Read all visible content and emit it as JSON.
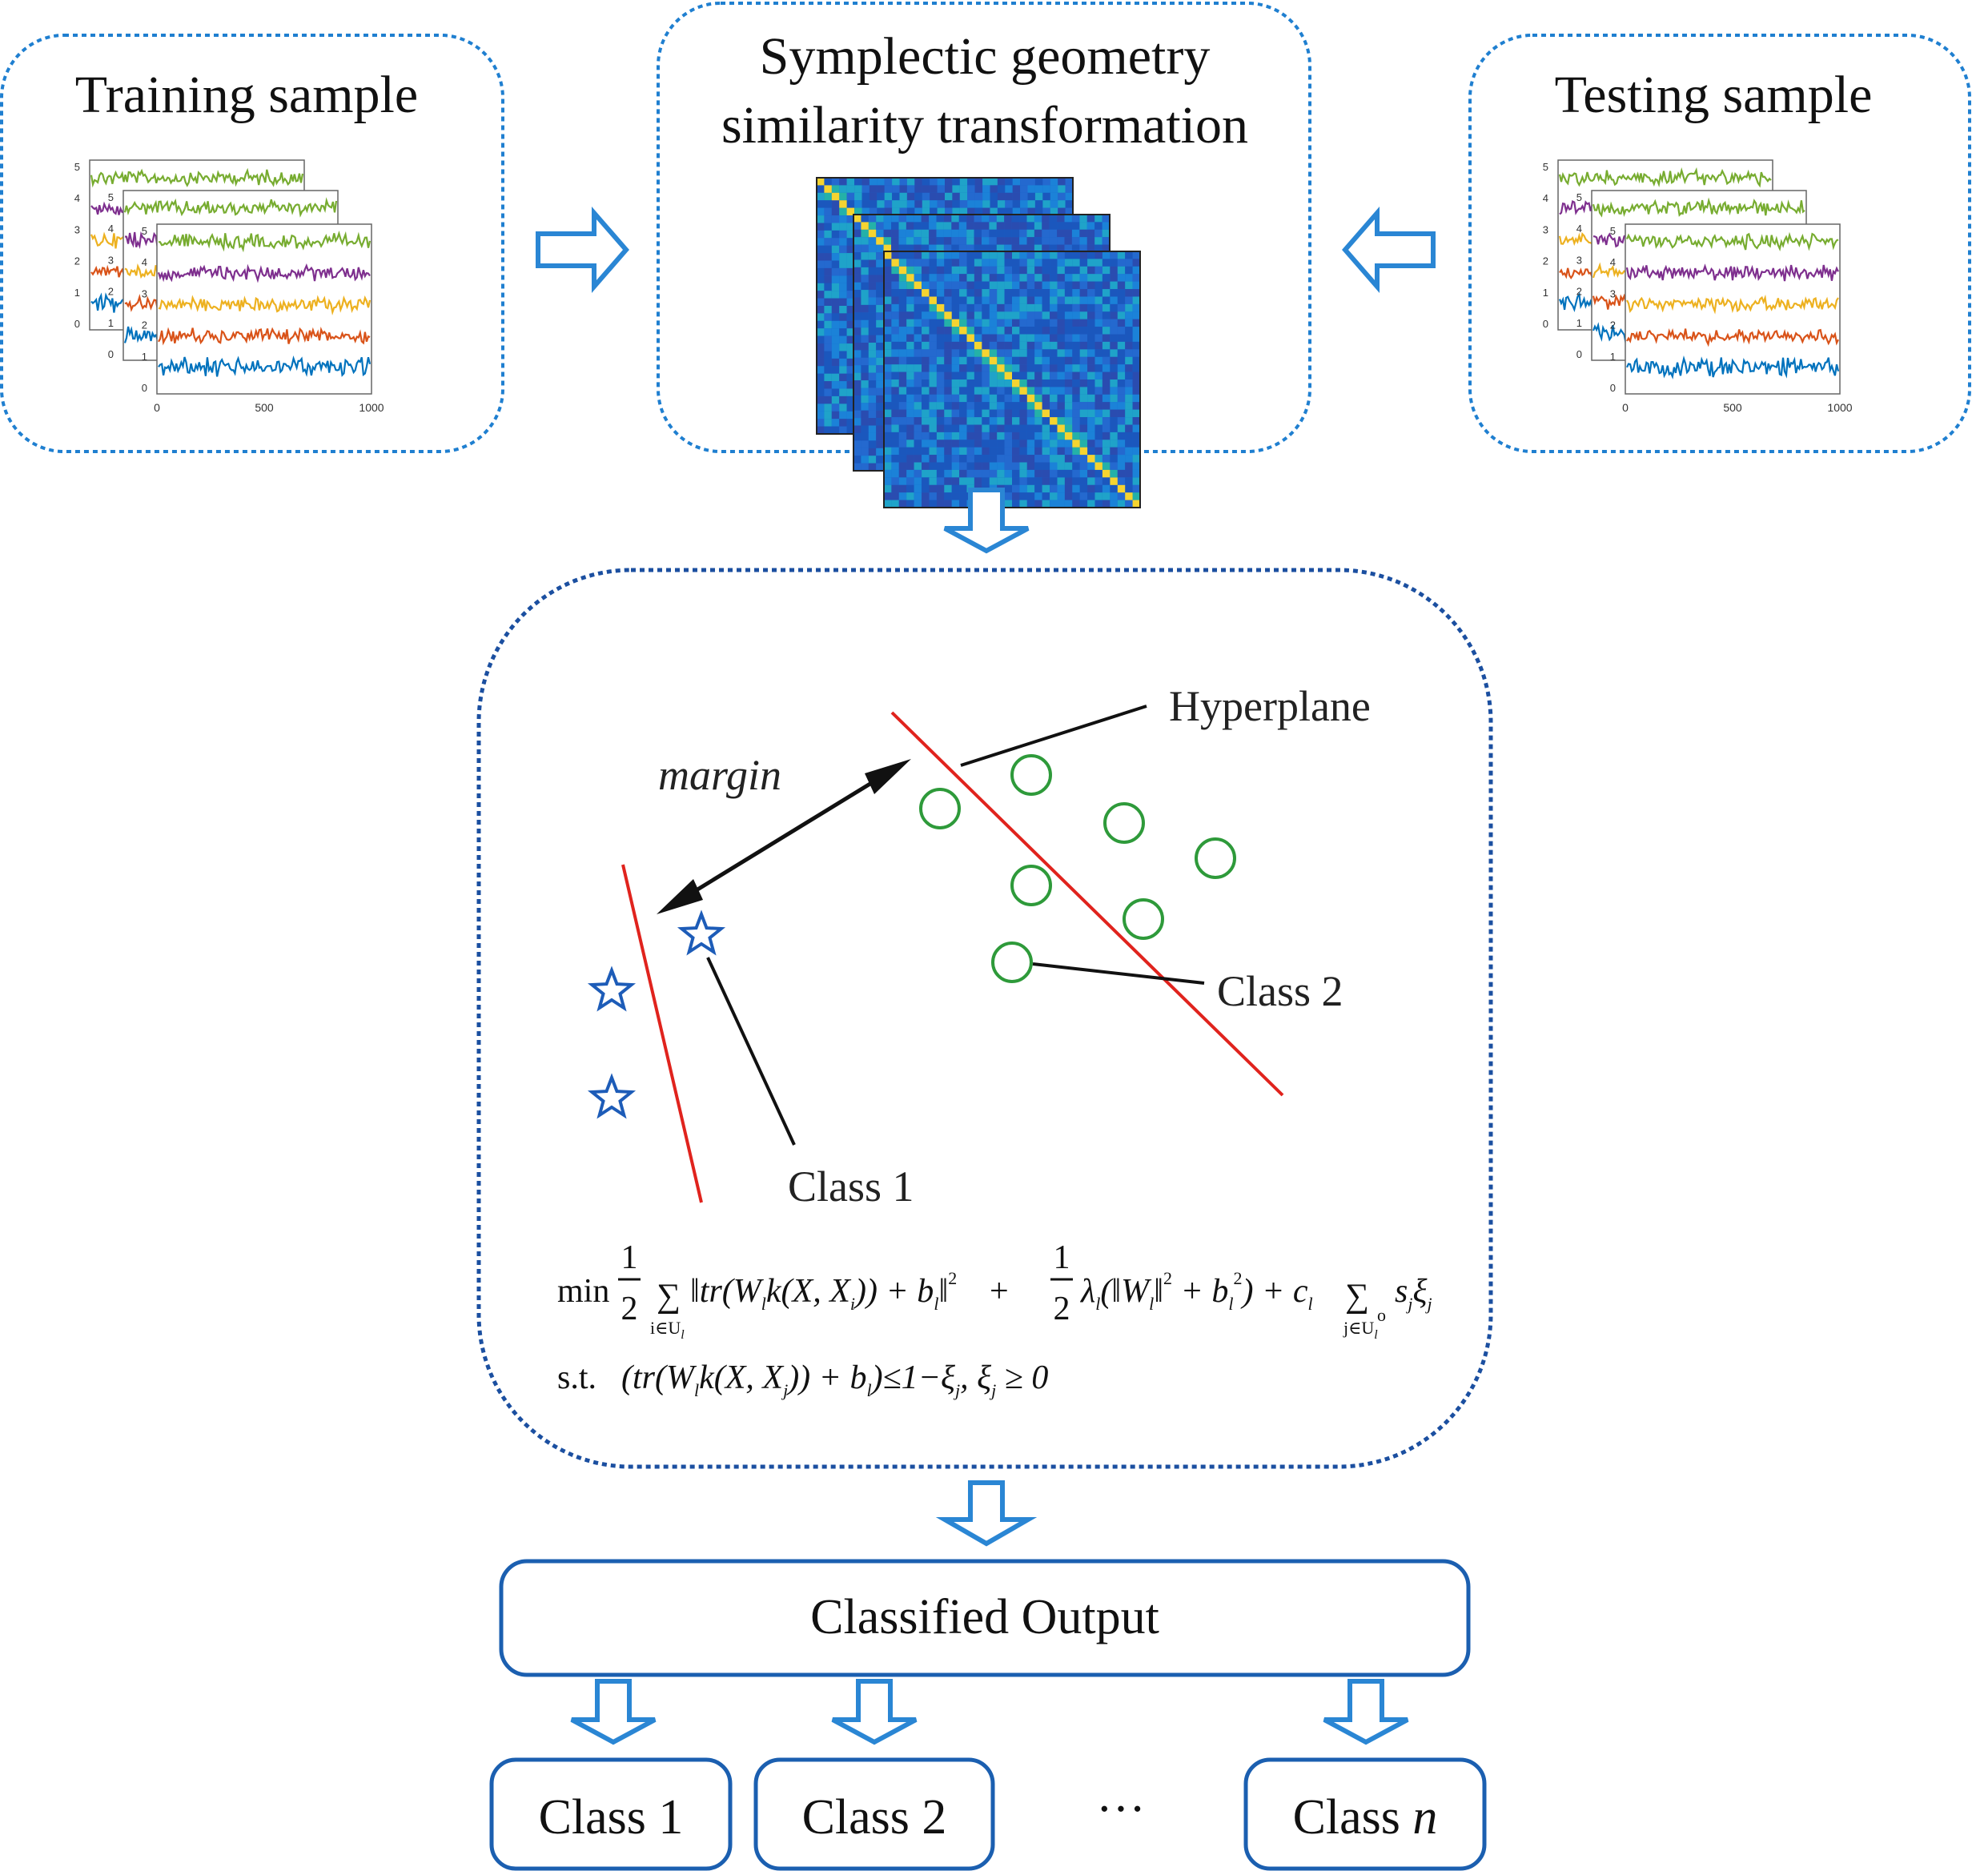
{
  "training": {
    "title": "Training sample",
    "y_ticks": [
      "5",
      "4",
      "3",
      "2",
      "1",
      "0"
    ],
    "x_ticks": [
      "0",
      "500",
      "1000"
    ]
  },
  "symplectic": {
    "title_line1": "Symplectic geometry",
    "title_line2": "similarity transformation"
  },
  "testing": {
    "title": "Testing sample",
    "y_ticks": [
      "5",
      "4",
      "3",
      "2",
      "1",
      "0"
    ],
    "x_ticks": [
      "0",
      "500",
      "1000"
    ]
  },
  "svm": {
    "hyperplane_label": "Hyperplane",
    "margin_label": "margin",
    "class1_label": "Class 1",
    "class2_label": "Class 2"
  },
  "equation": {
    "line1": {
      "min": "min",
      "half_num": "1",
      "half_den": "2",
      "sum": "∑",
      "sum_sub1": "i∈U",
      "sum_sub1_l": "l",
      "term1": "‖tr(W",
      "term1_l": "l",
      "term1b": "k(X, X",
      "term1_i": "i",
      "term1c": ")) + b",
      "term1_bl": "l",
      "term1d": "‖",
      "sq1": "2",
      "plus1": "+",
      "half2_num": "1",
      "half2_den": "2",
      "lambda": "λ",
      "lambda_l": "l",
      "term2": "(‖W",
      "term2_l": "l",
      "term2b": "‖",
      "sq2": "2",
      "term2c": " + b",
      "term2_bl": "l",
      "sq3": "2",
      "term2d": ") + c",
      "c_l": "l",
      "sum2": "∑",
      "sum_sub2": "j∈U",
      "sum_sub2_l": "l",
      "sum_sup2": "o",
      "tail": "s",
      "tail_j": "j",
      "xi": "ξ",
      "xi_j": "j"
    },
    "line2": {
      "st": "s.t.",
      "a": "(tr(W",
      "a_l": "l",
      "b": "k(X, X",
      "b_j": "j",
      "c": ")) + b",
      "c_l": "l",
      "d": ")≤1−ξ",
      "d_j": "j",
      "e": ", ξ",
      "e_j": "j",
      "f": " ≥ 0"
    }
  },
  "output": {
    "label": "Classified Output"
  },
  "classes": {
    "c1": "Class 1",
    "c2": "Class 2",
    "ellipsis": "···",
    "cn_prefix": "Class ",
    "cn_n": "n"
  },
  "colors": {
    "dotted_border": "#1f7fd0",
    "center_border": "#1b4fa0",
    "arrow": "#2a86d4",
    "output_border": "#1b5fb0",
    "hyperplane": "#e0231d",
    "class2_circle": "#2e9a3a",
    "class1_star": "#1d5cb8",
    "signal": [
      "#77ac30",
      "#7e2f8e",
      "#edb120",
      "#d95319",
      "#0072bd"
    ]
  }
}
